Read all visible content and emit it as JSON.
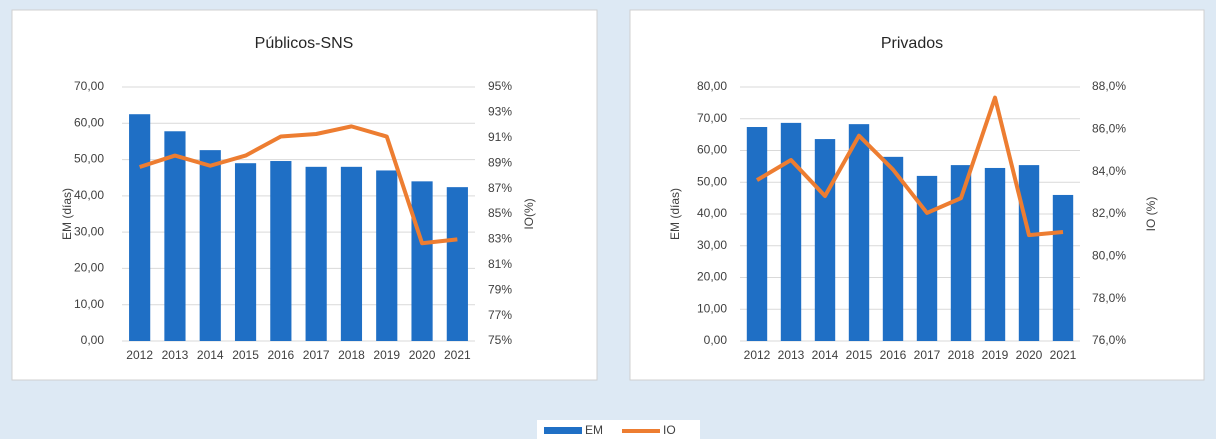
{
  "chart_data": [
    {
      "type": "bar_line",
      "title": "Públicos-SNS",
      "categories": [
        "2012",
        "2013",
        "2014",
        "2015",
        "2016",
        "2017",
        "2018",
        "2019",
        "2020",
        "2021"
      ],
      "series": [
        {
          "name": "EM",
          "color": "#1f6fc5",
          "type": "bar",
          "values": [
            62.5,
            57.8,
            52.6,
            49.0,
            49.6,
            48.0,
            48.0,
            47.0,
            44.0,
            42.4
          ]
        },
        {
          "name": "IO",
          "color": "#ed7d31",
          "type": "line",
          "axis": "y2",
          "values": [
            88.7,
            89.6,
            88.8,
            89.6,
            91.1,
            91.3,
            91.9,
            91.1,
            82.7,
            83.0
          ]
        }
      ],
      "ylabel": "EM (días)",
      "y2label": "IO(%)",
      "ylim": [
        0,
        70
      ],
      "yticks": [
        {
          "value": 0,
          "label": "0,00"
        },
        {
          "value": 10,
          "label": "10,00"
        },
        {
          "value": 20,
          "label": "20,00"
        },
        {
          "value": 30,
          "label": "30,00"
        },
        {
          "value": 40,
          "label": "40,00"
        },
        {
          "value": 50,
          "label": "50,00"
        },
        {
          "value": 60,
          "label": "60,00"
        },
        {
          "value": 70,
          "label": "70,00"
        }
      ],
      "y2lim": [
        75,
        95
      ],
      "y2ticks": [
        {
          "value": 75,
          "label": "75%"
        },
        {
          "value": 77,
          "label": "77%"
        },
        {
          "value": 79,
          "label": "79%"
        },
        {
          "value": 81,
          "label": "81%"
        },
        {
          "value": 83,
          "label": "83%"
        },
        {
          "value": 85,
          "label": "85%"
        },
        {
          "value": 87,
          "label": "87%"
        },
        {
          "value": 89,
          "label": "89%"
        },
        {
          "value": 91,
          "label": "91%"
        },
        {
          "value": 93,
          "label": "93%"
        },
        {
          "value": 95,
          "label": "95%"
        }
      ],
      "grid": true
    },
    {
      "type": "bar_line",
      "title": "Privados",
      "categories": [
        "2012",
        "2013",
        "2014",
        "2015",
        "2016",
        "2017",
        "2018",
        "2019",
        "2020",
        "2021"
      ],
      "series": [
        {
          "name": "EM",
          "color": "#1f6fc5",
          "type": "bar",
          "values": [
            67.4,
            68.7,
            63.6,
            68.3,
            58.0,
            52.0,
            55.4,
            54.5,
            55.4,
            46.0
          ]
        },
        {
          "name": "IO",
          "color": "#ed7d31",
          "type": "line",
          "axis": "y2",
          "values": [
            83.6,
            84.55,
            82.85,
            85.7,
            84.1,
            82.05,
            82.75,
            87.5,
            81.0,
            81.15
          ]
        }
      ],
      "ylabel": "EM (días)",
      "y2label": "IO (%)",
      "ylim": [
        0,
        80
      ],
      "yticks": [
        {
          "value": 0,
          "label": "0,00"
        },
        {
          "value": 10,
          "label": "10,00"
        },
        {
          "value": 20,
          "label": "20,00"
        },
        {
          "value": 30,
          "label": "30,00"
        },
        {
          "value": 40,
          "label": "40,00"
        },
        {
          "value": 50,
          "label": "50,00"
        },
        {
          "value": 60,
          "label": "60,00"
        },
        {
          "value": 70,
          "label": "70,00"
        },
        {
          "value": 80,
          "label": "80,00"
        }
      ],
      "y2lim": [
        76,
        88
      ],
      "y2ticks": [
        {
          "value": 76,
          "label": "76,0%"
        },
        {
          "value": 78,
          "label": "78,0%"
        },
        {
          "value": 80,
          "label": "80,0%"
        },
        {
          "value": 82,
          "label": "82,0%"
        },
        {
          "value": 84,
          "label": "84,0%"
        },
        {
          "value": 86,
          "label": "86,0%"
        },
        {
          "value": 88,
          "label": "88,0%"
        }
      ],
      "grid": true
    }
  ]
}
